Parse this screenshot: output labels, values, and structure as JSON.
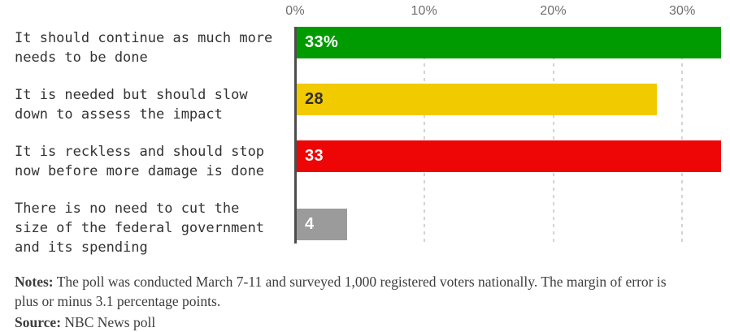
{
  "chart_data": {
    "type": "bar",
    "orientation": "horizontal",
    "title": "",
    "categories": [
      [
        "It should continue as much more",
        "needs to be done"
      ],
      [
        "It is needed but should slow",
        "down to assess the impact"
      ],
      [
        "It is reckless and should stop",
        "now before more damage is done"
      ],
      [
        "There is no need to cut the",
        "size of the federal government",
        "and its spending"
      ]
    ],
    "values": [
      33,
      28,
      33,
      4
    ],
    "value_labels": [
      "33%",
      "28",
      "33",
      "4"
    ],
    "bar_colors": [
      "#009b00",
      "#f2ca00",
      "#ee0505",
      "#9b9b9b"
    ],
    "value_label_colors": [
      "#ffffff",
      "#2e2e2e",
      "#ffffff",
      "#ffffff"
    ],
    "x_ticks": [
      {
        "label": "0%",
        "value": 0
      },
      {
        "label": "10%",
        "value": 10
      },
      {
        "label": "20%",
        "value": 20
      },
      {
        "label": "30%",
        "value": 30
      }
    ],
    "xlim": [
      0,
      33.7
    ],
    "grid": "vertical-dashed",
    "gridline_color": "#d4d4d4",
    "axis_line_color": "#4d4d4d",
    "tick_label_color": "#6e6e6e",
    "category_label_color": "#333333"
  },
  "footer": {
    "notes_label": "Notes:",
    "notes_text": "The poll was conducted March 7-11 and surveyed 1,000 registered voters nationally. The margin of error is plus or minus 3.1 percentage points.",
    "source_label": "Source:",
    "source_text": "NBC News poll"
  }
}
